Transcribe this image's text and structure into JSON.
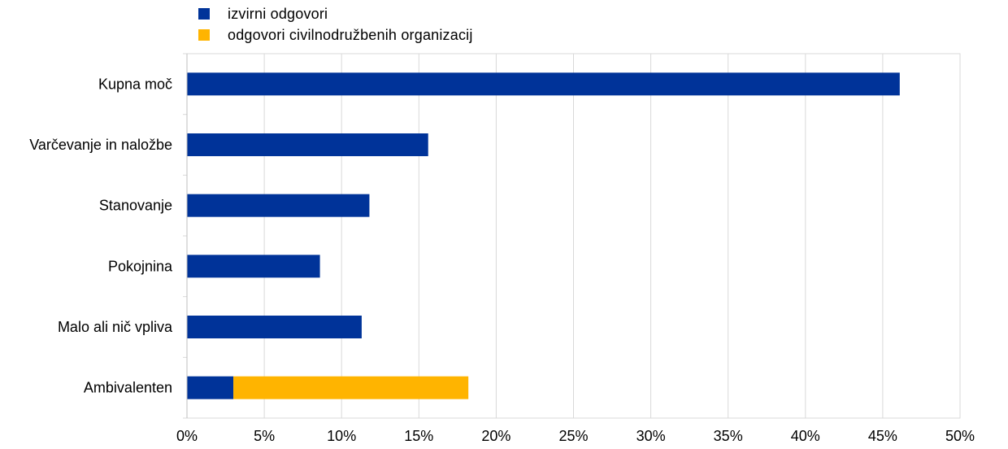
{
  "chart_data": {
    "type": "bar",
    "orientation": "horizontal",
    "stacked": true,
    "categories": [
      "Kupna moč",
      "Varčevanje in naložbe",
      "Stanovanje",
      "Pokojnina",
      "Malo ali nič vpliva",
      "Ambivalenten"
    ],
    "series": [
      {
        "name": "izvirni odgovori",
        "color": "#003399",
        "values": [
          46.1,
          15.6,
          11.8,
          8.6,
          11.3,
          3.0
        ]
      },
      {
        "name": "odgovori civilnodružbenih organizacij",
        "color": "#FFB400",
        "values": [
          0,
          0,
          0,
          0,
          0,
          15.2
        ]
      }
    ],
    "xlim": [
      0,
      50
    ],
    "xticks": [
      0,
      5,
      10,
      15,
      20,
      25,
      30,
      35,
      40,
      45,
      50
    ],
    "xtick_labels": [
      "0%",
      "5%",
      "10%",
      "15%",
      "20%",
      "25%",
      "30%",
      "35%",
      "40%",
      "45%",
      "50%"
    ],
    "grid": true,
    "legend_position": "top-left"
  }
}
